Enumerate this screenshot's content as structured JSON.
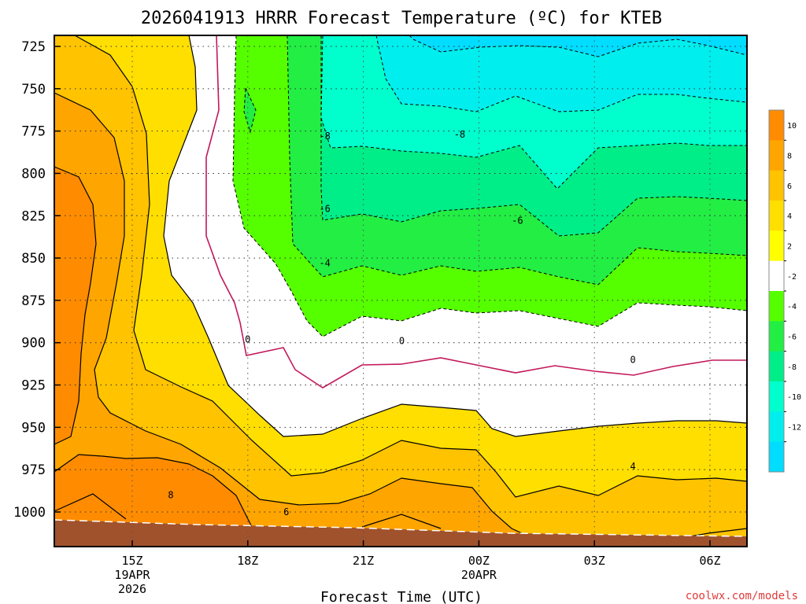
{
  "chart_data": {
    "type": "contour",
    "title": "2026041913 HRRR Forecast Temperature (ºC) for KTEB",
    "xlabel": "Forecast Time (UTC)",
    "y_ticks": [
      "725",
      "750",
      "775",
      "800",
      "825",
      "850",
      "875",
      "900",
      "925",
      "950",
      "975",
      "1000"
    ],
    "x_ticks": [
      {
        "label": "15Z",
        "date": "19APR",
        "year": "2026"
      },
      {
        "label": "18Z",
        "date": "",
        "year": ""
      },
      {
        "label": "21Z",
        "date": "",
        "year": ""
      },
      {
        "label": "00Z",
        "date": "20APR",
        "year": ""
      },
      {
        "label": "03Z",
        "date": "",
        "year": ""
      },
      {
        "label": "06Z",
        "date": "",
        "year": ""
      }
    ],
    "colorbar": {
      "labels": [
        "10",
        "8",
        "6",
        "4",
        "2",
        "-2",
        "-4",
        "-6",
        "-8",
        "-10",
        "-12"
      ],
      "colors": [
        "#ff8c00",
        "#ffa500",
        "#ffc300",
        "#ffdf00",
        "#ffff00",
        "#ffffff",
        "#55ff00",
        "#22ee44",
        "#00ee88",
        "#00ffcc",
        "#00eeee",
        "#00ddff"
      ]
    },
    "contour_labels": [
      {
        "text": "-8",
        "hour": 20.0,
        "pressure": 778
      },
      {
        "text": "-8",
        "hour": 23.5,
        "pressure": 777
      },
      {
        "text": "-6",
        "hour": 20.0,
        "pressure": 821
      },
      {
        "text": "-6",
        "hour": 25.0,
        "pressure": 828
      },
      {
        "text": "-4",
        "hour": 20.0,
        "pressure": 853
      },
      {
        "text": "0",
        "hour": 18.0,
        "pressure": 898
      },
      {
        "text": "0",
        "hour": 22.0,
        "pressure": 899
      },
      {
        "text": "0",
        "hour": 28.0,
        "pressure": 910
      },
      {
        "text": "8",
        "hour": 16.0,
        "pressure": 990
      },
      {
        "text": "6",
        "hour": 19.0,
        "pressure": 1000
      },
      {
        "text": "4",
        "hour": 28.0,
        "pressure": 973
      }
    ],
    "terrain_color": "#a0522d",
    "credit": "coolwx.com/models"
  }
}
